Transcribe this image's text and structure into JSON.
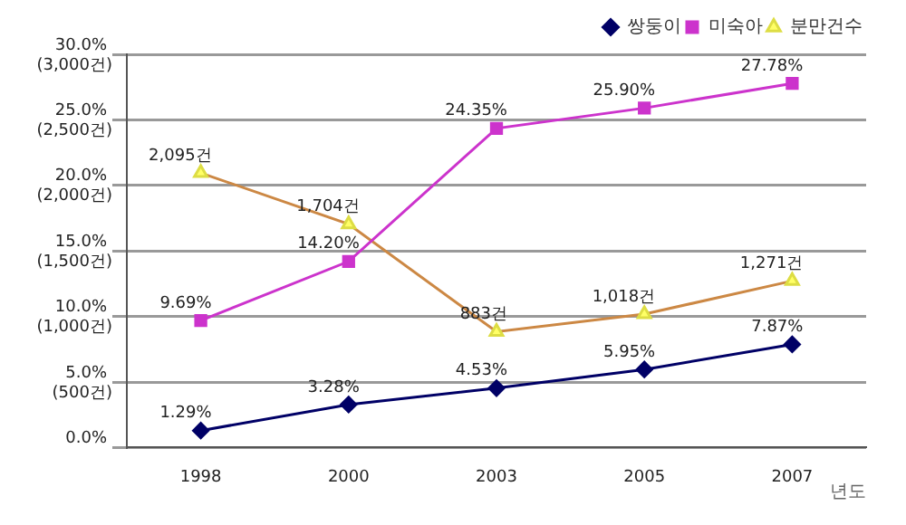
{
  "chart_data": {
    "type": "line",
    "categories": [
      "1998",
      "2000",
      "2003",
      "2005",
      "2007"
    ],
    "xlabel": "년도",
    "series": [
      {
        "name": "쌍둥이",
        "color": "#000066",
        "marker": "diamond",
        "values": [
          1.29,
          3.28,
          4.53,
          5.95,
          7.87
        ],
        "value_labels": [
          "1.29%",
          "3.28%",
          "4.53%",
          "5.95%",
          "7.87%"
        ]
      },
      {
        "name": "미숙아",
        "color": "#cc33cc",
        "marker": "square",
        "values": [
          9.69,
          14.2,
          24.35,
          25.9,
          27.78
        ],
        "value_labels": [
          "9.69%",
          "14.20%",
          "24.35%",
          "25.90%",
          "27.78%"
        ]
      },
      {
        "name": "분만건수",
        "color": "#cc8844",
        "marker": "triangle",
        "axis": "y2",
        "values": [
          2095,
          1704,
          883,
          1018,
          1271
        ],
        "value_labels": [
          "2,095건",
          "1,704건",
          "883건",
          "1,018건",
          "1,271건"
        ]
      }
    ],
    "ylim": [
      0,
      30
    ],
    "yticks": [
      {
        "value": 0,
        "label": "0.0%"
      },
      {
        "value": 5,
        "label": "5.0%"
      },
      {
        "value": 10,
        "label": "10.0%"
      },
      {
        "value": 15,
        "label": "15.0%"
      },
      {
        "value": 20,
        "label": "20.0%"
      },
      {
        "value": 25,
        "label": "25.0%"
      },
      {
        "value": 30,
        "label": "30.0%"
      }
    ],
    "y2lim": [
      0,
      3000
    ],
    "y2ticks": [
      {
        "value": 0,
        "label": null
      },
      {
        "value": 500,
        "label": "(500건)"
      },
      {
        "value": 1000,
        "label": "(1,000건)"
      },
      {
        "value": 1500,
        "label": "(1,500건)"
      },
      {
        "value": 2000,
        "label": "(2,000건)"
      },
      {
        "value": 2500,
        "label": "(2,500건)"
      },
      {
        "value": 3000,
        "label": "(3,000건)"
      }
    ],
    "grid": "y",
    "legend": "top right"
  }
}
